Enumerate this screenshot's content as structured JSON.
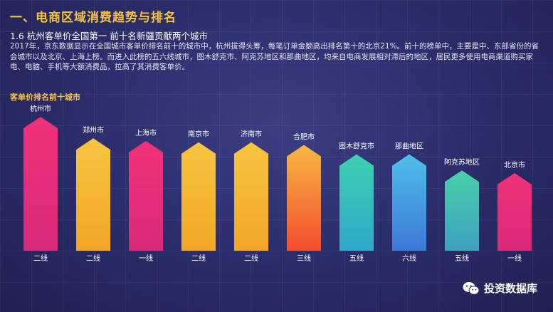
{
  "header": {
    "section_title": "一、电商区域消费趋势与排名",
    "subtitle": "1.6 杭州客单价全国第一 前十名新疆贡献两个城市",
    "body": "2017年，京东数据显示在全国城市客单价排名前十的城市中，杭州拔得头筹，每笔订单金额高出排名第十的北京21%。前十的榜单中，主要是中、东部省份的省会城市以及北京、上海上榜。而进入此榜的五六线城市，图木舒克市、阿克苏地区和那曲地区，均来自电商发展相对滞后的地区，居民更多使用电商渠道购买家电、电脑、手机等大额消费品，拉高了其消费客单价。"
  },
  "logo": {
    "text": "投资数据库",
    "icon": "wechat-icon"
  },
  "colors": {
    "title_accent": "#f6c340",
    "tier_white": "#ffffff",
    "tier_gold": "#f6c340"
  },
  "chart_data": {
    "type": "bar",
    "title": "客单价排名前十城市",
    "categories": [
      "杭州市",
      "郑州市",
      "上海市",
      "南京市",
      "济南市",
      "合肥市",
      "图木舒克市",
      "那曲地区",
      "阿克苏地区",
      "北京市"
    ],
    "tiers": [
      "二线",
      "二线",
      "一线",
      "二线",
      "二线",
      "三线",
      "五线",
      "六线",
      "五线",
      "一线"
    ],
    "values": [
      100,
      84,
      82,
      81,
      81,
      79,
      72,
      72,
      60,
      58
    ],
    "value_unit": "relative (bar height, no values printed)",
    "gradients": [
      [
        "#d92a7a",
        "#f0327a"
      ],
      [
        "#f1a626",
        "#f7c540"
      ],
      [
        "#d92a7a",
        "#f0327a"
      ],
      [
        "#f1a626",
        "#f7c540"
      ],
      [
        "#f1a626",
        "#f7c540"
      ],
      [
        "#f24d2e",
        "#f7b844"
      ],
      [
        "#2ea8c8",
        "#3ed0b0"
      ],
      [
        "#3e78d8",
        "#4ec0e8"
      ],
      [
        "#3ea0c0",
        "#48d0a8"
      ],
      [
        "#d92a7a",
        "#f0327a"
      ]
    ]
  }
}
